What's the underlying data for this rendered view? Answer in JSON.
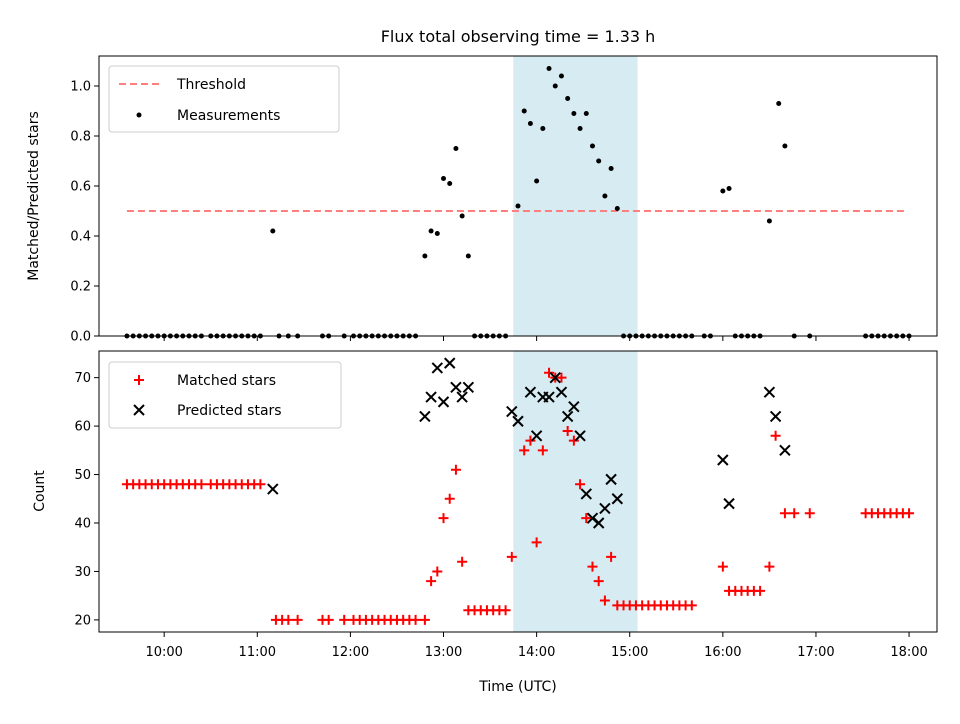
{
  "title": "Flux total observing time = 1.33 h",
  "xlabel": "Time (UTC)",
  "x_ticks": [
    "10:00",
    "11:00",
    "12:00",
    "13:00",
    "14:00",
    "15:00",
    "16:00",
    "17:00",
    "18:00"
  ],
  "highlight_window": {
    "start": "13:45",
    "end": "15:05",
    "color": "#add8e6"
  },
  "colors": {
    "threshold": "#ff7f7f",
    "measurement": "#000000",
    "matched": "#ff0000",
    "predicted": "#000000"
  },
  "chart_data": [
    {
      "type": "scatter",
      "ylabel": "Matched/Predicted stars",
      "ylim": [
        0,
        1.12
      ],
      "y_ticks": [
        "0.0",
        "0.2",
        "0.4",
        "0.6",
        "0.8",
        "1.0"
      ],
      "legend": {
        "placement": "top-left",
        "entries": [
          "Threshold",
          "Measurements"
        ]
      },
      "threshold": {
        "name": "Threshold",
        "value": 0.5,
        "x_range": [
          "09:36",
          "17:59"
        ]
      },
      "series": [
        {
          "name": "Measurements",
          "points": [
            [
              "09:36",
              0
            ],
            [
              "09:40",
              0
            ],
            [
              "09:44",
              0
            ],
            [
              "09:48",
              0
            ],
            [
              "09:52",
              0
            ],
            [
              "09:56",
              0
            ],
            [
              "10:00",
              0
            ],
            [
              "10:04",
              0
            ],
            [
              "10:08",
              0
            ],
            [
              "10:12",
              0
            ],
            [
              "10:16",
              0
            ],
            [
              "10:20",
              0
            ],
            [
              "10:24",
              0
            ],
            [
              "10:30",
              0
            ],
            [
              "10:34",
              0
            ],
            [
              "10:38",
              0
            ],
            [
              "10:42",
              0
            ],
            [
              "10:46",
              0
            ],
            [
              "10:50",
              0
            ],
            [
              "10:54",
              0
            ],
            [
              "10:58",
              0
            ],
            [
              "11:02",
              0
            ],
            [
              "11:10",
              0.42
            ],
            [
              "11:14",
              0
            ],
            [
              "11:20",
              0
            ],
            [
              "11:26",
              0
            ],
            [
              "11:42",
              0
            ],
            [
              "11:46",
              0
            ],
            [
              "11:56",
              0
            ],
            [
              "12:02",
              0
            ],
            [
              "12:06",
              0
            ],
            [
              "12:10",
              0
            ],
            [
              "12:14",
              0
            ],
            [
              "12:18",
              0
            ],
            [
              "12:22",
              0
            ],
            [
              "12:26",
              0
            ],
            [
              "12:30",
              0
            ],
            [
              "12:34",
              0
            ],
            [
              "12:38",
              0
            ],
            [
              "12:42",
              0
            ],
            [
              "12:48",
              0.32
            ],
            [
              "12:52",
              0.42
            ],
            [
              "12:56",
              0.41
            ],
            [
              "13:00",
              0.63
            ],
            [
              "13:04",
              0.61
            ],
            [
              "13:08",
              0.75
            ],
            [
              "13:12",
              0.48
            ],
            [
              "13:16",
              0.32
            ],
            [
              "13:20",
              0
            ],
            [
              "13:24",
              0
            ],
            [
              "13:28",
              0
            ],
            [
              "13:32",
              0
            ],
            [
              "13:36",
              0
            ],
            [
              "13:40",
              0
            ],
            [
              "13:48",
              0.52
            ],
            [
              "13:52",
              0.9
            ],
            [
              "13:56",
              0.85
            ],
            [
              "14:00",
              0.62
            ],
            [
              "14:04",
              0.83
            ],
            [
              "14:08",
              1.07
            ],
            [
              "14:12",
              1.0
            ],
            [
              "14:16",
              1.04
            ],
            [
              "14:20",
              0.95
            ],
            [
              "14:24",
              0.89
            ],
            [
              "14:28",
              0.83
            ],
            [
              "14:32",
              0.89
            ],
            [
              "14:36",
              0.76
            ],
            [
              "14:40",
              0.7
            ],
            [
              "14:44",
              0.56
            ],
            [
              "14:48",
              0.67
            ],
            [
              "14:52",
              0.51
            ],
            [
              "14:56",
              0
            ],
            [
              "15:00",
              0
            ],
            [
              "15:04",
              0
            ],
            [
              "15:08",
              0
            ],
            [
              "15:12",
              0
            ],
            [
              "15:16",
              0
            ],
            [
              "15:20",
              0
            ],
            [
              "15:24",
              0
            ],
            [
              "15:28",
              0
            ],
            [
              "15:32",
              0
            ],
            [
              "15:36",
              0
            ],
            [
              "15:40",
              0
            ],
            [
              "15:48",
              0
            ],
            [
              "15:52",
              0
            ],
            [
              "16:00",
              0.58
            ],
            [
              "16:04",
              0.59
            ],
            [
              "16:08",
              0
            ],
            [
              "16:12",
              0
            ],
            [
              "16:16",
              0
            ],
            [
              "16:20",
              0
            ],
            [
              "16:24",
              0
            ],
            [
              "16:30",
              0.46
            ],
            [
              "16:36",
              0.93
            ],
            [
              "16:40",
              0.76
            ],
            [
              "16:46",
              0
            ],
            [
              "16:56",
              0
            ],
            [
              "17:32",
              0
            ],
            [
              "17:36",
              0
            ],
            [
              "17:40",
              0
            ],
            [
              "17:44",
              0
            ],
            [
              "17:48",
              0
            ],
            [
              "17:52",
              0
            ],
            [
              "17:56",
              0
            ],
            [
              "18:00",
              0
            ]
          ]
        }
      ]
    },
    {
      "type": "scatter",
      "ylabel": "Count",
      "ylim": [
        17.5,
        75.5
      ],
      "y_ticks": [
        "20",
        "30",
        "40",
        "50",
        "60",
        "70"
      ],
      "legend": {
        "placement": "top-left",
        "entries": [
          "Matched stars",
          "Predicted stars"
        ]
      },
      "series": [
        {
          "name": "Matched stars",
          "marker": "plus",
          "points": [
            [
              "09:36",
              48
            ],
            [
              "09:40",
              48
            ],
            [
              "09:44",
              48
            ],
            [
              "09:48",
              48
            ],
            [
              "09:52",
              48
            ],
            [
              "09:56",
              48
            ],
            [
              "10:00",
              48
            ],
            [
              "10:04",
              48
            ],
            [
              "10:08",
              48
            ],
            [
              "10:12",
              48
            ],
            [
              "10:16",
              48
            ],
            [
              "10:20",
              48
            ],
            [
              "10:24",
              48
            ],
            [
              "10:30",
              48
            ],
            [
              "10:34",
              48
            ],
            [
              "10:38",
              48
            ],
            [
              "10:42",
              48
            ],
            [
              "10:46",
              48
            ],
            [
              "10:50",
              48
            ],
            [
              "10:54",
              48
            ],
            [
              "10:58",
              48
            ],
            [
              "11:02",
              48
            ],
            [
              "11:12",
              20
            ],
            [
              "11:16",
              20
            ],
            [
              "11:20",
              20
            ],
            [
              "11:26",
              20
            ],
            [
              "11:42",
              20
            ],
            [
              "11:46",
              20
            ],
            [
              "11:56",
              20
            ],
            [
              "12:02",
              20
            ],
            [
              "12:06",
              20
            ],
            [
              "12:10",
              20
            ],
            [
              "12:14",
              20
            ],
            [
              "12:18",
              20
            ],
            [
              "12:22",
              20
            ],
            [
              "12:26",
              20
            ],
            [
              "12:30",
              20
            ],
            [
              "12:34",
              20
            ],
            [
              "12:38",
              20
            ],
            [
              "12:42",
              20
            ],
            [
              "12:48",
              20
            ],
            [
              "12:52",
              28
            ],
            [
              "12:56",
              30
            ],
            [
              "13:00",
              41
            ],
            [
              "13:04",
              45
            ],
            [
              "13:08",
              51
            ],
            [
              "13:12",
              32
            ],
            [
              "13:16",
              22
            ],
            [
              "13:20",
              22
            ],
            [
              "13:24",
              22
            ],
            [
              "13:28",
              22
            ],
            [
              "13:32",
              22
            ],
            [
              "13:36",
              22
            ],
            [
              "13:40",
              22
            ],
            [
              "13:44",
              33
            ],
            [
              "13:52",
              55
            ],
            [
              "13:56",
              57
            ],
            [
              "14:00",
              36
            ],
            [
              "14:04",
              55
            ],
            [
              "14:08",
              71
            ],
            [
              "14:12",
              70
            ],
            [
              "14:16",
              70
            ],
            [
              "14:20",
              59
            ],
            [
              "14:24",
              57
            ],
            [
              "14:28",
              48
            ],
            [
              "14:32",
              41
            ],
            [
              "14:36",
              31
            ],
            [
              "14:40",
              28
            ],
            [
              "14:44",
              24
            ],
            [
              "14:48",
              33
            ],
            [
              "14:52",
              23
            ],
            [
              "14:56",
              23
            ],
            [
              "15:00",
              23
            ],
            [
              "15:04",
              23
            ],
            [
              "15:08",
              23
            ],
            [
              "15:12",
              23
            ],
            [
              "15:16",
              23
            ],
            [
              "15:20",
              23
            ],
            [
              "15:24",
              23
            ],
            [
              "15:28",
              23
            ],
            [
              "15:32",
              23
            ],
            [
              "15:36",
              23
            ],
            [
              "15:40",
              23
            ],
            [
              "16:00",
              31
            ],
            [
              "16:04",
              26
            ],
            [
              "16:08",
              26
            ],
            [
              "16:12",
              26
            ],
            [
              "16:16",
              26
            ],
            [
              "16:20",
              26
            ],
            [
              "16:24",
              26
            ],
            [
              "16:30",
              31
            ],
            [
              "16:34",
              58
            ],
            [
              "16:40",
              42
            ],
            [
              "16:46",
              42
            ],
            [
              "16:56",
              42
            ],
            [
              "17:32",
              42
            ],
            [
              "17:36",
              42
            ],
            [
              "17:40",
              42
            ],
            [
              "17:44",
              42
            ],
            [
              "17:48",
              42
            ],
            [
              "17:52",
              42
            ],
            [
              "17:56",
              42
            ],
            [
              "18:00",
              42
            ]
          ]
        },
        {
          "name": "Predicted stars",
          "marker": "x",
          "points": [
            [
              "11:10",
              47
            ],
            [
              "12:48",
              62
            ],
            [
              "12:52",
              66
            ],
            [
              "12:56",
              72
            ],
            [
              "13:00",
              65
            ],
            [
              "13:04",
              73
            ],
            [
              "13:08",
              68
            ],
            [
              "13:12",
              66
            ],
            [
              "13:16",
              68
            ],
            [
              "13:44",
              63
            ],
            [
              "13:48",
              61
            ],
            [
              "13:56",
              67
            ],
            [
              "14:00",
              58
            ],
            [
              "14:04",
              66
            ],
            [
              "14:08",
              66
            ],
            [
              "14:12",
              70
            ],
            [
              "14:16",
              67
            ],
            [
              "14:20",
              62
            ],
            [
              "14:24",
              64
            ],
            [
              "14:28",
              58
            ],
            [
              "14:32",
              46
            ],
            [
              "14:36",
              41
            ],
            [
              "14:40",
              40
            ],
            [
              "14:44",
              43
            ],
            [
              "14:48",
              49
            ],
            [
              "14:52",
              45
            ],
            [
              "16:00",
              53
            ],
            [
              "16:04",
              44
            ],
            [
              "16:30",
              67
            ],
            [
              "16:34",
              62
            ],
            [
              "16:40",
              55
            ]
          ]
        }
      ]
    }
  ]
}
